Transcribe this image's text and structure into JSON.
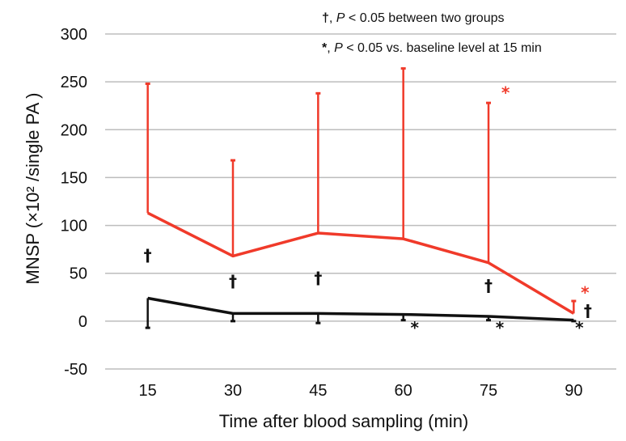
{
  "chart_data": {
    "type": "line",
    "title": "",
    "xlabel": "Time after blood sampling (min)",
    "ylabel": "MNSP (×10² /single PA )",
    "x": [
      15,
      30,
      45,
      60,
      75,
      90
    ],
    "x_tick_labels": [
      "15",
      "30",
      "45",
      "60",
      "75",
      "90"
    ],
    "ylim": [
      -50,
      300
    ],
    "y_ticks": [
      -50,
      0,
      50,
      100,
      150,
      200,
      250,
      300
    ],
    "grid": "horizontal",
    "series": [
      {
        "color": "#f03a2a",
        "values": [
          113,
          68,
          92,
          86,
          61,
          8
        ],
        "error_upper": [
          248,
          168,
          238,
          264,
          228,
          21
        ],
        "error_direction": "up"
      },
      {
        "color": "#111111",
        "values": [
          24,
          8,
          8,
          7,
          5,
          1
        ],
        "error_lower": [
          -7,
          0,
          -2,
          1,
          1,
          0
        ],
        "error_direction": "down"
      }
    ],
    "annotations": [
      {
        "text": "†",
        "x": 15,
        "y": 63,
        "color": "#111111"
      },
      {
        "text": "†",
        "x": 30,
        "y": 36,
        "color": "#111111"
      },
      {
        "text": "†",
        "x": 45,
        "y": 39,
        "color": "#111111"
      },
      {
        "text": "†",
        "x": 75,
        "y": 31,
        "color": "#111111"
      },
      {
        "text": "†",
        "x": 92.5,
        "y": 5,
        "color": "#111111"
      },
      {
        "text": "*",
        "x": 62,
        "y": -13,
        "color": "#111111"
      },
      {
        "text": "*",
        "x": 77,
        "y": -13,
        "color": "#111111"
      },
      {
        "text": "*",
        "x": 91,
        "y": -13,
        "color": "#111111"
      },
      {
        "text": "*",
        "x": 78,
        "y": 233,
        "color": "#f03a2a"
      },
      {
        "text": "*",
        "x": 92,
        "y": 24,
        "color": "#f03a2a"
      }
    ],
    "legend": {
      "placement": "top-right",
      "entries": [
        {
          "symbol": "†",
          "pre": ", ",
          "p": "P",
          "post": " < 0.05 between two groups"
        },
        {
          "symbol": "*",
          "pre": ", ",
          "p": "P",
          "post": " < 0.05 vs. baseline level at 15 min"
        }
      ]
    }
  }
}
